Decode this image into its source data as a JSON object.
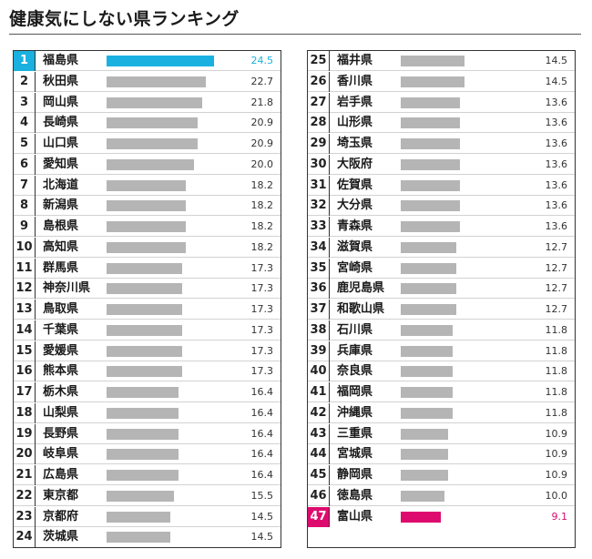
{
  "title": "健康気にしない県ランキング",
  "colors": {
    "bar": "#b5b5b5",
    "first": "#1ab1e0",
    "last": "#de0b6e",
    "text": "#1a1a1a"
  },
  "chart_data": {
    "type": "bar",
    "orientation": "horizontal",
    "title": "健康気にしない県ランキング",
    "xlim": [
      0,
      25
    ],
    "rows": [
      {
        "rank": "1",
        "name": "福島県",
        "value": 24.5
      },
      {
        "rank": "2",
        "name": "秋田県",
        "value": 22.7
      },
      {
        "rank": "3",
        "name": "岡山県",
        "value": 21.8
      },
      {
        "rank": "4",
        "name": "長崎県",
        "value": 20.9
      },
      {
        "rank": "5",
        "name": "山口県",
        "value": 20.9
      },
      {
        "rank": "6",
        "name": "愛知県",
        "value": 20.0
      },
      {
        "rank": "7",
        "name": "北海道",
        "value": 18.2
      },
      {
        "rank": "8",
        "name": "新潟県",
        "value": 18.2
      },
      {
        "rank": "9",
        "name": "島根県",
        "value": 18.2
      },
      {
        "rank": "10",
        "name": "高知県",
        "value": 18.2
      },
      {
        "rank": "11",
        "name": "群馬県",
        "value": 17.3
      },
      {
        "rank": "12",
        "name": "神奈川県",
        "value": 17.3
      },
      {
        "rank": "13",
        "name": "鳥取県",
        "value": 17.3
      },
      {
        "rank": "14",
        "name": "千葉県",
        "value": 17.3
      },
      {
        "rank": "15",
        "name": "愛媛県",
        "value": 17.3
      },
      {
        "rank": "16",
        "name": "熊本県",
        "value": 17.3
      },
      {
        "rank": "17",
        "name": "栃木県",
        "value": 16.4
      },
      {
        "rank": "18",
        "name": "山梨県",
        "value": 16.4
      },
      {
        "rank": "19",
        "name": "長野県",
        "value": 16.4
      },
      {
        "rank": "20",
        "name": "岐阜県",
        "value": 16.4
      },
      {
        "rank": "21",
        "name": "広島県",
        "value": 16.4
      },
      {
        "rank": "22",
        "name": "東京都",
        "value": 15.5
      },
      {
        "rank": "23",
        "name": "京都府",
        "value": 14.5
      },
      {
        "rank": "24",
        "name": "茨城県",
        "value": 14.5
      },
      {
        "rank": "25",
        "name": "福井県",
        "value": 14.5
      },
      {
        "rank": "26",
        "name": "香川県",
        "value": 14.5
      },
      {
        "rank": "27",
        "name": "岩手県",
        "value": 13.6
      },
      {
        "rank": "28",
        "name": "山形県",
        "value": 13.6
      },
      {
        "rank": "29",
        "name": "埼玉県",
        "value": 13.6
      },
      {
        "rank": "30",
        "name": "大阪府",
        "value": 13.6
      },
      {
        "rank": "31",
        "name": "佐賀県",
        "value": 13.6
      },
      {
        "rank": "32",
        "name": "大分県",
        "value": 13.6
      },
      {
        "rank": "33",
        "name": "青森県",
        "value": 13.6
      },
      {
        "rank": "34",
        "name": "滋賀県",
        "value": 12.7
      },
      {
        "rank": "35",
        "name": "宮崎県",
        "value": 12.7
      },
      {
        "rank": "36",
        "name": "鹿児島県",
        "value": 12.7
      },
      {
        "rank": "37",
        "name": "和歌山県",
        "value": 12.7
      },
      {
        "rank": "38",
        "name": "石川県",
        "value": 11.8
      },
      {
        "rank": "39",
        "name": "兵庫県",
        "value": 11.8
      },
      {
        "rank": "40",
        "name": "奈良県",
        "value": 11.8
      },
      {
        "rank": "41",
        "name": "福岡県",
        "value": 11.8
      },
      {
        "rank": "42",
        "name": "沖縄県",
        "value": 11.8
      },
      {
        "rank": "43",
        "name": "三重県",
        "value": 10.9
      },
      {
        "rank": "44",
        "name": "宮城県",
        "value": 10.9
      },
      {
        "rank": "45",
        "name": "静岡県",
        "value": 10.9
      },
      {
        "rank": "46",
        "name": "徳島県",
        "value": 10.0
      },
      {
        "rank": "47",
        "name": "富山県",
        "value": 9.1
      }
    ]
  }
}
